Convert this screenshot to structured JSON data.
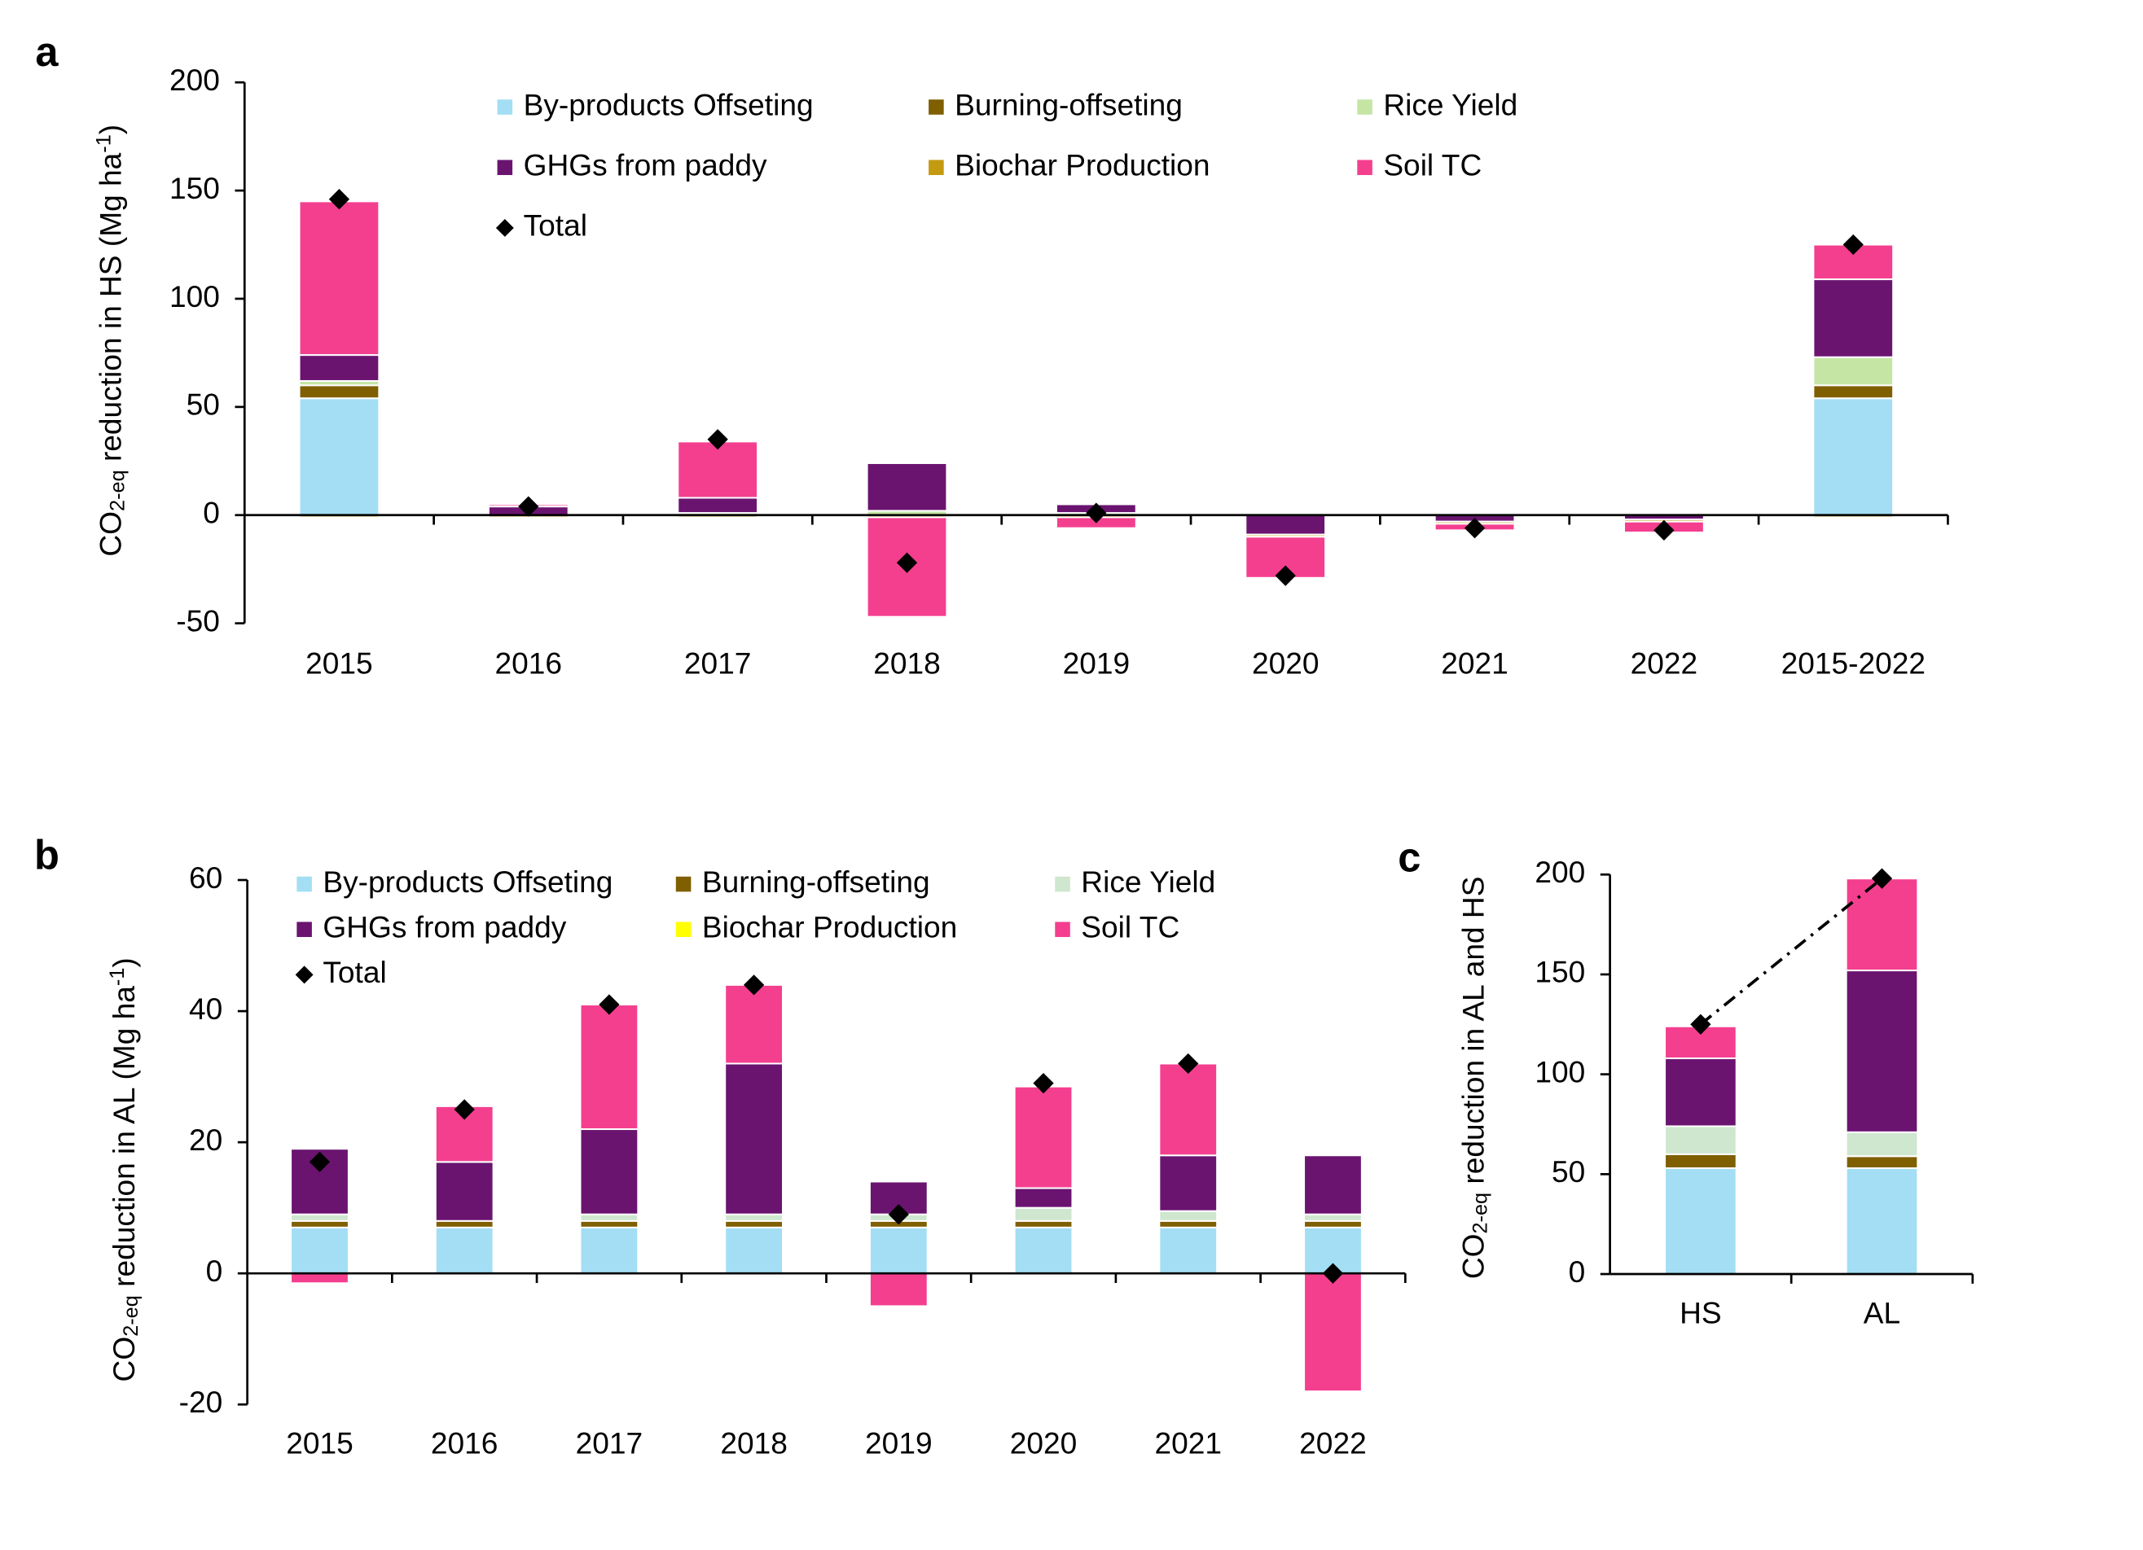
{
  "chart_data": [
    {
      "type": "stacked_bar",
      "panel_label": "a",
      "ylabel": [
        "CO",
        "2-eq",
        " reduction in HS (Mg ha",
        "-1",
        ")"
      ],
      "categories": [
        "2015",
        "2016",
        "2017",
        "2018",
        "2019",
        "2020",
        "2021",
        "2022",
        "2015-2022"
      ],
      "series": [
        {
          "name": "By-products Offseting",
          "color": "#a3def5",
          "values": [
            54,
            0,
            0,
            0,
            0,
            0,
            0,
            0,
            54
          ]
        },
        {
          "name": "Burning-offseting",
          "color": "#7f5f00",
          "values": [
            6,
            0,
            0,
            0,
            0,
            0,
            0,
            0,
            6
          ]
        },
        {
          "name": "Rice Yield",
          "color": "#c5e5a5",
          "values": [
            2,
            0,
            1,
            2,
            1,
            0,
            0,
            0,
            13
          ]
        },
        {
          "name": "GHGs from paddy",
          "color": "#6a1470",
          "values": [
            12,
            4,
            7,
            22,
            4,
            -9,
            -3,
            -2,
            36
          ]
        },
        {
          "name": "Biochar Production",
          "color": "#c49a10",
          "values": [
            -1,
            -1,
            -1,
            -1,
            -1,
            -1,
            -1,
            -1,
            -1
          ]
        },
        {
          "name": "Soil TC",
          "color": "#f43f8f",
          "values": [
            71,
            1,
            26,
            -46,
            -5,
            -19,
            -3,
            -5,
            16
          ]
        }
      ],
      "total": {
        "name": "Total",
        "color": "#000000",
        "values": [
          146,
          4,
          35,
          -22,
          1,
          -28,
          -6,
          -7,
          125
        ]
      },
      "ylim": [
        -50,
        200
      ],
      "yticks": [
        -50,
        0,
        50,
        100,
        150,
        200
      ]
    },
    {
      "type": "stacked_bar",
      "panel_label": "b",
      "ylabel": [
        "CO",
        "2-eq",
        " reduction in AL (Mg ha",
        "-1",
        ")"
      ],
      "categories": [
        "2015",
        "2016",
        "2017",
        "2018",
        "2019",
        "2020",
        "2021",
        "2022"
      ],
      "series": [
        {
          "name": "By-products Offseting",
          "color": "#a3def5",
          "values": [
            7,
            7,
            7,
            7,
            7,
            7,
            7,
            7
          ]
        },
        {
          "name": "Burning-offseting",
          "color": "#7f5f00",
          "values": [
            1,
            1,
            1,
            1,
            1,
            1,
            1,
            1
          ]
        },
        {
          "name": "Rice Yield",
          "color": "#cfe6cf",
          "values": [
            1,
            0,
            1,
            1,
            1,
            2,
            1.5,
            1
          ]
        },
        {
          "name": "GHGs from paddy",
          "color": "#6a1470",
          "values": [
            10,
            9,
            13,
            23,
            5,
            3,
            8.5,
            9
          ]
        },
        {
          "name": "Biochar Production",
          "color": "#ffff00",
          "values": [
            0,
            0,
            0,
            0,
            0,
            0,
            0,
            0
          ]
        },
        {
          "name": "Soil TC",
          "color": "#f43f8f",
          "values": [
            -1.5,
            8.5,
            19,
            12,
            -5,
            15.5,
            14,
            -18
          ]
        }
      ],
      "total": {
        "name": "Total",
        "color": "#000000",
        "values": [
          17,
          25,
          41,
          44,
          9,
          29,
          32,
          0
        ]
      },
      "ylim": [
        -20,
        60
      ],
      "yticks": [
        -20,
        0,
        20,
        40,
        60
      ]
    },
    {
      "type": "stacked_bar",
      "panel_label": "c",
      "ylabel": [
        "CO",
        "2-eq",
        " reduction in AL and HS"
      ],
      "categories": [
        "HS",
        "AL"
      ],
      "series": [
        {
          "color": "#a3def5",
          "values": [
            53,
            53
          ]
        },
        {
          "color": "#7f5f00",
          "values": [
            7,
            6
          ]
        },
        {
          "color": "#cfe6cf",
          "values": [
            14,
            12
          ]
        },
        {
          "color": "#6a1470",
          "values": [
            34,
            81
          ]
        },
        {
          "color": "#f43f8f",
          "values": [
            16,
            46
          ]
        }
      ],
      "total": {
        "color": "#000000",
        "values": [
          125,
          198
        ],
        "line": true
      },
      "ylim": [
        0,
        200
      ],
      "yticks": [
        0,
        50,
        100,
        150,
        200
      ]
    }
  ]
}
